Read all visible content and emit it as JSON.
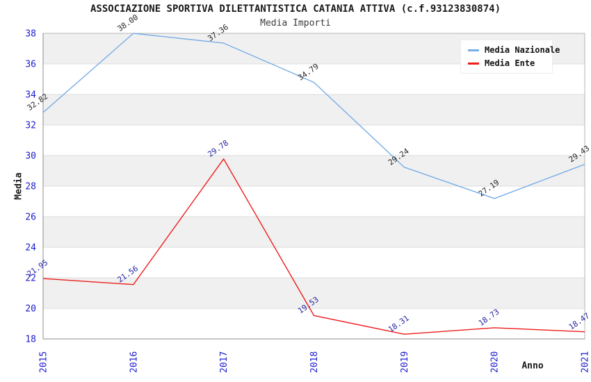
{
  "title": "ASSOCIAZIONE SPORTIVA DILETTANTISTICA CATANIA ATTIVA (c.f.93123830874)",
  "subtitle": "Media Importi",
  "chart_data": {
    "type": "line",
    "x": [
      2015,
      2016,
      2017,
      2018,
      2019,
      2020,
      2021
    ],
    "series": [
      {
        "name": "Media Nazionale",
        "color": "#79ade6",
        "label_color": "#262626",
        "values": [
          32.82,
          38.0,
          37.36,
          34.79,
          29.24,
          27.19,
          29.43
        ]
      },
      {
        "name": "Media Ente",
        "color": "#ee1c1c",
        "label_color": "#1f1f9e",
        "values": [
          21.95,
          21.56,
          29.78,
          19.53,
          18.31,
          18.73,
          18.47
        ]
      }
    ],
    "xlabel": "Anno",
    "ylabel": "Media",
    "ylim": [
      18,
      38
    ],
    "ytick_step": 2,
    "grid": "alternating-horizontal-bands",
    "legend_position": "top-right",
    "styles": {
      "tick_color": "#1a1acd",
      "band_color": "#f0f0f0",
      "gridline_color": "#dcdcdc",
      "border_color": "#b4b4b4",
      "axis_color": "#8c8c8c",
      "background": "#ffffff"
    }
  }
}
